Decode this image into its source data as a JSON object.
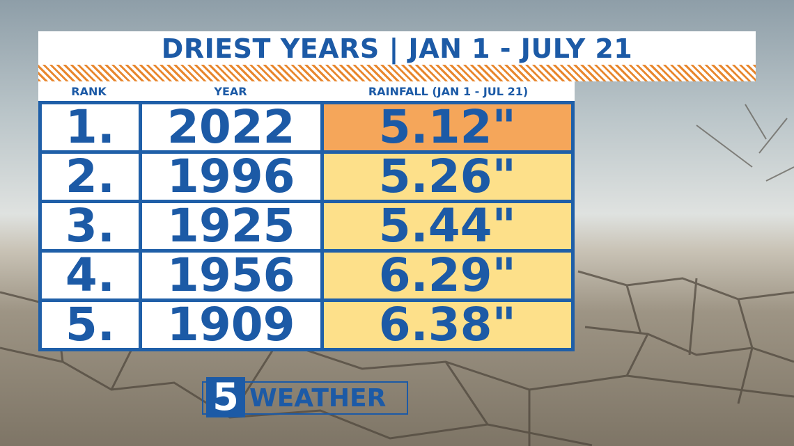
{
  "header": {
    "title": "DRIEST YEARS | JAN 1 - JULY 21"
  },
  "table": {
    "columns": [
      "RANK",
      "YEAR",
      "RAINFALL (JAN 1 - JUL 21)"
    ],
    "rows": [
      [
        "1.",
        "2022",
        "5.12\""
      ],
      [
        "2.",
        "1996",
        "5.26\""
      ],
      [
        "3.",
        "1925",
        "5.44\""
      ],
      [
        "4.",
        "1956",
        "6.29\""
      ],
      [
        "5.",
        "1909",
        "6.38\""
      ]
    ]
  },
  "logo": {
    "number": "5",
    "text": "WEATHER"
  }
}
